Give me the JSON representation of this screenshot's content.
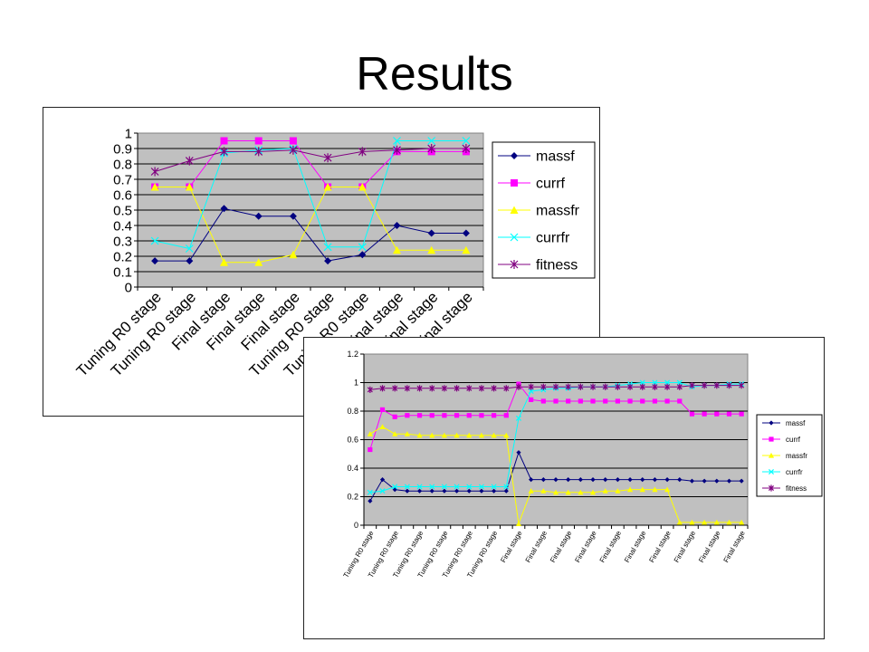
{
  "slide": {
    "title": "Results"
  },
  "chart_data": [
    {
      "type": "line",
      "categories": [
        "Tuning R0 stage",
        "Tuning R0 stage",
        "Final stage",
        "Final stage",
        "Final stage",
        "Tuning R0 stage",
        "Tuning R0 stage",
        "Final stage",
        "Final stage",
        "Final stage"
      ],
      "ylim": [
        0,
        1
      ],
      "yticks": [
        "0",
        "0.1",
        "0.2",
        "0.3",
        "0.4",
        "0.5",
        "0.6",
        "0.7",
        "0.8",
        "0.9",
        "1"
      ],
      "grid": true,
      "legend": "right",
      "series": [
        {
          "name": "massf",
          "color": "#000080",
          "marker": "diamond",
          "values": [
            0.17,
            0.17,
            0.51,
            0.46,
            0.46,
            0.17,
            0.21,
            0.4,
            0.35,
            0.35
          ]
        },
        {
          "name": "currf",
          "color": "#ff00ff",
          "marker": "square",
          "values": [
            0.65,
            0.65,
            0.95,
            0.95,
            0.95,
            0.65,
            0.65,
            0.88,
            0.88,
            0.88
          ]
        },
        {
          "name": "massfr",
          "color": "#ffff00",
          "marker": "triangle",
          "values": [
            0.65,
            0.65,
            0.16,
            0.16,
            0.21,
            0.65,
            0.65,
            0.24,
            0.24,
            0.24
          ]
        },
        {
          "name": "currfr",
          "color": "#00ffff",
          "marker": "x",
          "values": [
            0.3,
            0.25,
            0.87,
            0.89,
            0.9,
            0.26,
            0.26,
            0.95,
            0.95,
            0.95
          ]
        },
        {
          "name": "fitness",
          "color": "#800080",
          "marker": "star",
          "values": [
            0.75,
            0.82,
            0.88,
            0.88,
            0.89,
            0.84,
            0.88,
            0.89,
            0.9,
            0.9
          ]
        }
      ]
    },
    {
      "type": "line",
      "categories": [
        "Tuning R0 stage",
        "",
        "Tuning R0 stage",
        "",
        "Tuning R0 stage",
        "",
        "Tuning R0 stage",
        "",
        "Tuning R0 stage",
        "",
        "Tuning R0 stage",
        "",
        "Final stage",
        "",
        "Final stage",
        "",
        "Final stage",
        "",
        "Final stage",
        "",
        "Final stage",
        "",
        "Final stage",
        "",
        "Final stage",
        "",
        "Final stage",
        "",
        "Final stage",
        "",
        "Final stage"
      ],
      "ylim": [
        0,
        1.2
      ],
      "yticks": [
        "0",
        "0.2",
        "0.4",
        "0.6",
        "0.8",
        "1",
        "1.2"
      ],
      "grid": true,
      "legend": "right",
      "series": [
        {
          "name": "massf",
          "color": "#000080",
          "marker": "diamond",
          "values": [
            0.17,
            0.32,
            0.25,
            0.24,
            0.24,
            0.24,
            0.24,
            0.24,
            0.24,
            0.24,
            0.24,
            0.24,
            0.51,
            0.32,
            0.32,
            0.32,
            0.32,
            0.32,
            0.32,
            0.32,
            0.32,
            0.32,
            0.32,
            0.32,
            0.32,
            0.32,
            0.31,
            0.31,
            0.31,
            0.31,
            0.31
          ]
        },
        {
          "name": "currf",
          "color": "#ff00ff",
          "marker": "square",
          "values": [
            0.53,
            0.81,
            0.76,
            0.77,
            0.77,
            0.77,
            0.77,
            0.77,
            0.77,
            0.77,
            0.77,
            0.77,
            0.99,
            0.88,
            0.87,
            0.87,
            0.87,
            0.87,
            0.87,
            0.87,
            0.87,
            0.87,
            0.87,
            0.87,
            0.87,
            0.87,
            0.78,
            0.78,
            0.78,
            0.78,
            0.78
          ]
        },
        {
          "name": "massfr",
          "color": "#ffff00",
          "marker": "triangle",
          "values": [
            0.64,
            0.69,
            0.64,
            0.64,
            0.63,
            0.63,
            0.63,
            0.63,
            0.63,
            0.63,
            0.63,
            0.63,
            0.01,
            0.24,
            0.24,
            0.23,
            0.23,
            0.23,
            0.23,
            0.24,
            0.24,
            0.25,
            0.25,
            0.25,
            0.25,
            0.02,
            0.02,
            0.02,
            0.02,
            0.02,
            0.02
          ]
        },
        {
          "name": "currfr",
          "color": "#00ffff",
          "marker": "x",
          "values": [
            0.23,
            0.24,
            0.27,
            0.27,
            0.27,
            0.27,
            0.27,
            0.27,
            0.27,
            0.27,
            0.27,
            0.27,
            0.75,
            0.94,
            0.95,
            0.96,
            0.96,
            0.97,
            0.97,
            0.97,
            0.98,
            0.99,
            1.0,
            1.0,
            1.0,
            1.0,
            0.97,
            0.98,
            0.98,
            0.99,
            0.99
          ]
        },
        {
          "name": "fitness",
          "color": "#800080",
          "marker": "star",
          "values": [
            0.95,
            0.96,
            0.96,
            0.96,
            0.96,
            0.96,
            0.96,
            0.96,
            0.96,
            0.96,
            0.96,
            0.96,
            0.97,
            0.97,
            0.97,
            0.97,
            0.97,
            0.97,
            0.97,
            0.97,
            0.97,
            0.97,
            0.97,
            0.97,
            0.97,
            0.97,
            0.98,
            0.98,
            0.98,
            0.98,
            0.98
          ]
        }
      ]
    }
  ]
}
